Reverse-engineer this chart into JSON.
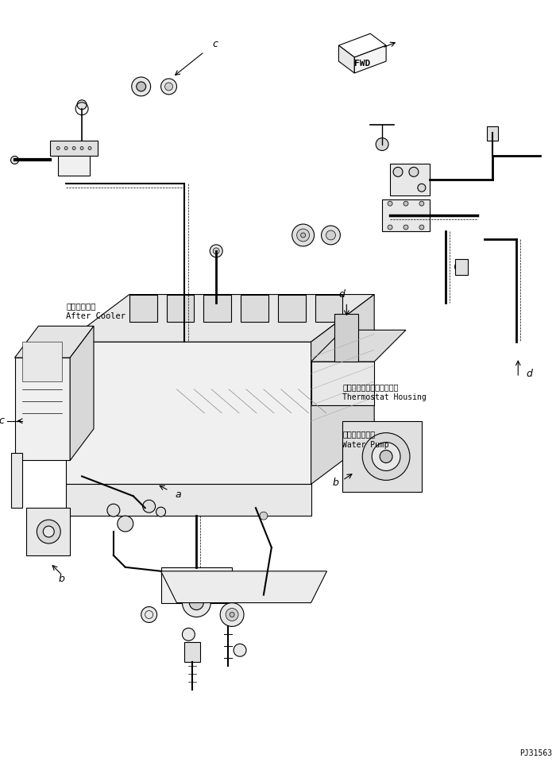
{
  "title": "",
  "background_color": "#ffffff",
  "line_color": "#000000",
  "text_color": "#000000",
  "figsize": [
    7.0,
    9.64
  ],
  "dpi": 100,
  "labels": {
    "after_cooler_jp": "アフタクーラ",
    "after_cooler_en": "After Cooler",
    "thermostat_jp": "サーモスタットハウジング",
    "thermostat_en": "Thermostat Housing",
    "water_pump_jp": "ウォータポンプ",
    "water_pump_en": "Water Pump",
    "fwd": "FWD",
    "part_num": "PJ31563",
    "label_a": "a",
    "label_b": "b",
    "label_c": "c",
    "label_d": "d"
  }
}
